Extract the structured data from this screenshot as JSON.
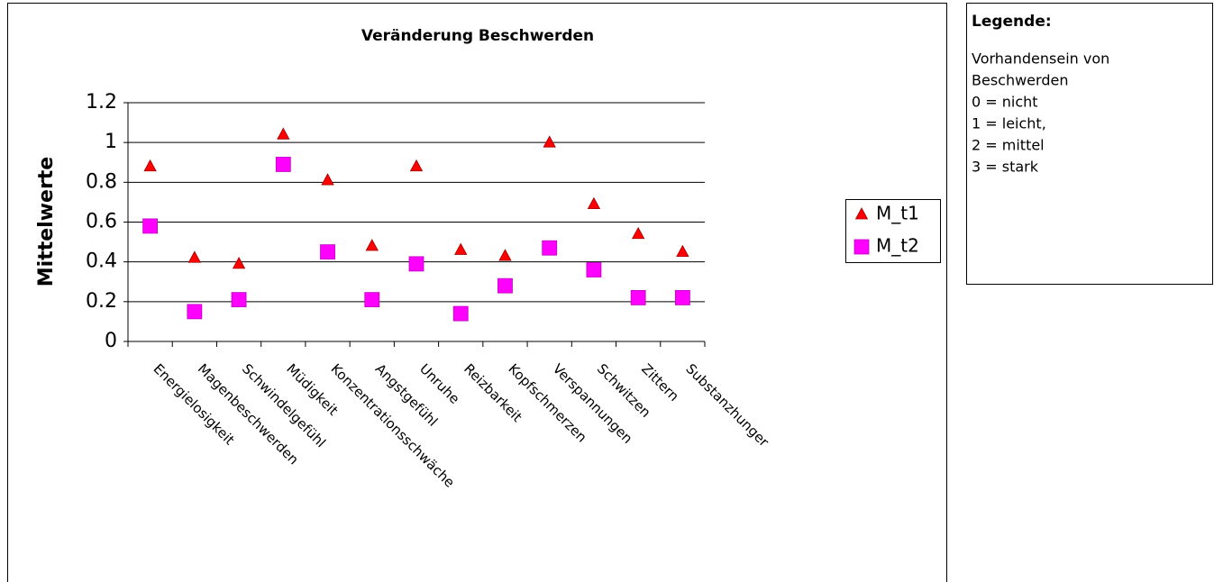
{
  "chart_data": {
    "type": "scatter",
    "title": "Veränderung Beschwerden",
    "y_label": "Mittelwerte",
    "categories": [
      "Energielosigkeit",
      "Magenbeschwerden",
      "Schwindelgefühl",
      "Müdigkeit",
      "Konzentrationsschwäche",
      "Angstgefühl",
      "Unruhe",
      "Reizbarkeit",
      "Kopfschmerzen",
      "Verspannungen",
      "Schwitzen",
      "Zittern",
      "Substanzhunger"
    ],
    "series": [
      {
        "name": "M_t1",
        "color": "#ff0000",
        "marker": "triangle",
        "values": [
          0.88,
          0.42,
          0.39,
          1.04,
          0.81,
          0.48,
          0.88,
          0.46,
          0.43,
          1.0,
          0.69,
          0.54,
          0.45
        ]
      },
      {
        "name": "M_t2",
        "color": "#ff00ff",
        "marker": "square",
        "values": [
          0.58,
          0.15,
          0.21,
          0.89,
          0.45,
          0.21,
          0.39,
          0.14,
          0.28,
          0.47,
          0.36,
          0.22,
          0.22
        ]
      }
    ],
    "ylim": [
      0,
      1.2
    ],
    "yticks": [
      0,
      0.2,
      0.4,
      0.6,
      0.8,
      1,
      1.2
    ],
    "grid": true,
    "legend": "right"
  },
  "legend_box": {
    "title": "Legende:",
    "lines": [
      "Vorhandensein von",
      "Beschwerden",
      "0 = nicht",
      "1 = leicht,",
      "2 = mittel",
      "3 = stark"
    ]
  }
}
